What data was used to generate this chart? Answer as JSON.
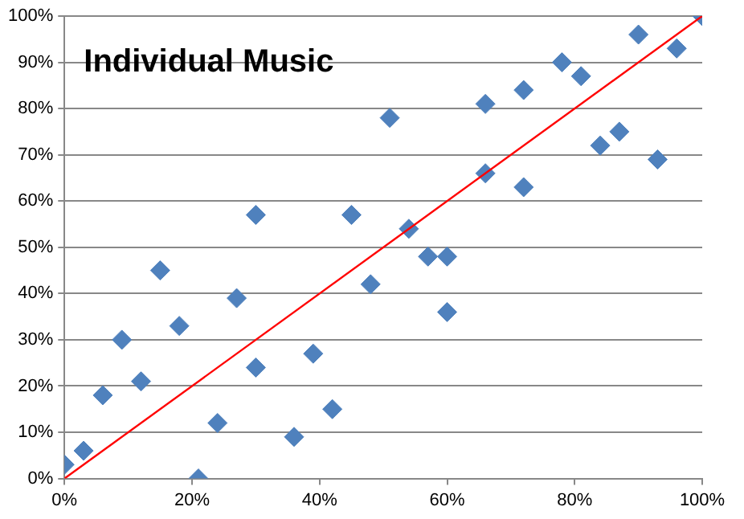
{
  "chart_data": {
    "type": "scatter",
    "title": "Individual Music",
    "xlim": [
      0,
      100
    ],
    "xticks": [
      {
        "value": 0,
        "label": "0%"
      },
      {
        "value": 20,
        "label": "20%"
      },
      {
        "value": 40,
        "label": "40%"
      },
      {
        "value": 60,
        "label": "60%"
      },
      {
        "value": 80,
        "label": "80%"
      },
      {
        "value": 100,
        "label": "100%"
      }
    ],
    "ylim": [
      0,
      100
    ],
    "yticks": [
      {
        "value": 0,
        "label": "0%"
      },
      {
        "value": 10,
        "label": "10%"
      },
      {
        "value": 20,
        "label": "20%"
      },
      {
        "value": 30,
        "label": "30%"
      },
      {
        "value": 40,
        "label": "40%"
      },
      {
        "value": 50,
        "label": "50%"
      },
      {
        "value": 60,
        "label": "60%"
      },
      {
        "value": 70,
        "label": "70%"
      },
      {
        "value": 80,
        "label": "80%"
      },
      {
        "value": 90,
        "label": "90%"
      },
      {
        "value": 100,
        "label": "100%"
      }
    ],
    "grid": "y",
    "legend": false,
    "marker": "diamond",
    "series": [
      {
        "type": "scatter",
        "color": "#4f81bd",
        "x": [
          0,
          3,
          6,
          9,
          12,
          15,
          18,
          21,
          24,
          27,
          30,
          30,
          36,
          39,
          42,
          45,
          48,
          51,
          54,
          57,
          60,
          60,
          66,
          66,
          72,
          72,
          78,
          81,
          84,
          87,
          90,
          93,
          96,
          100
        ],
        "values": [
          3,
          6,
          18,
          30,
          21,
          45,
          33,
          0,
          12,
          39,
          57,
          24,
          9,
          27,
          15,
          57,
          42,
          78,
          54,
          48,
          48,
          36,
          81,
          66,
          84,
          63,
          90,
          87,
          72,
          75,
          96,
          69,
          93,
          100
        ]
      },
      {
        "type": "line",
        "marker": "none",
        "color": "#ff0000",
        "x": [
          0,
          100
        ],
        "values": [
          0,
          100
        ]
      }
    ]
  }
}
